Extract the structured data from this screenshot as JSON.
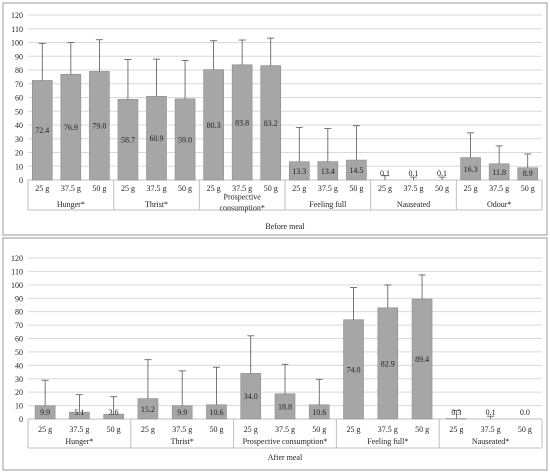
{
  "chart_data": [
    {
      "type": "bar",
      "caption": "Before meal",
      "ylim": [
        0,
        120
      ],
      "ytick_step": 10,
      "grid": true,
      "groups": [
        {
          "name": "Hunger*",
          "categories": [
            "25 g",
            "37.5 g",
            "50 g"
          ],
          "values": [
            72.4,
            76.9,
            79.0
          ],
          "errors": [
            27,
            23,
            23
          ]
        },
        {
          "name": "Thrist*",
          "categories": [
            "25 g",
            "37.5 g",
            "50 g"
          ],
          "values": [
            58.7,
            60.9,
            59.0
          ],
          "errors": [
            29,
            27,
            28
          ]
        },
        {
          "name": "Prospective consumption*",
          "categories": [
            "25 g",
            "37.5 g",
            "50 g"
          ],
          "values": [
            80.3,
            83.8,
            83.2
          ],
          "errors": [
            21,
            18,
            20
          ]
        },
        {
          "name": "Feeling full",
          "categories": [
            "25 g",
            "37.5 g",
            "50 g"
          ],
          "values": [
            13.3,
            13.4,
            14.5
          ],
          "errors": [
            25,
            24,
            25
          ]
        },
        {
          "name": "Nauseated",
          "categories": [
            "25 g",
            "37.5 g",
            "50 g"
          ],
          "values": [
            0.1,
            0.1,
            0.1
          ],
          "errors": [
            3,
            2,
            2
          ]
        },
        {
          "name": "Odour*",
          "categories": [
            "25 g",
            "37.5 g",
            "50 g"
          ],
          "values": [
            16.3,
            11.8,
            8.9
          ],
          "errors": [
            18,
            13,
            10
          ]
        }
      ]
    },
    {
      "type": "bar",
      "caption": "After meal",
      "ylim": [
        0,
        120
      ],
      "ytick_step": 10,
      "grid": true,
      "groups": [
        {
          "name": "Hunger*",
          "categories": [
            "25 g",
            "37.5 g",
            "50 g"
          ],
          "values": [
            9.9,
            5.1,
            3.6
          ],
          "errors": [
            19,
            13,
            13
          ]
        },
        {
          "name": "Thrist*",
          "categories": [
            "25 g",
            "37.5 g",
            "50 g"
          ],
          "values": [
            15.2,
            9.9,
            10.6
          ],
          "errors": [
            29,
            26,
            28
          ]
        },
        {
          "name": "Prospective consumption*",
          "categories": [
            "25 g",
            "37.5 g",
            "50 g"
          ],
          "values": [
            34.0,
            18.8,
            10.6
          ],
          "errors": [
            28,
            22,
            19
          ]
        },
        {
          "name": "Feeling full*",
          "categories": [
            "25 g",
            "37.5 g",
            "50 g"
          ],
          "values": [
            74.0,
            82.9,
            89.4
          ],
          "errors": [
            24,
            17,
            18
          ]
        },
        {
          "name": "Nauseated*",
          "categories": [
            "25 g",
            "37.5 g",
            "50 g"
          ],
          "values": [
            0.3,
            0.1,
            0.0
          ],
          "errors": [
            6,
            2,
            0
          ]
        }
      ]
    }
  ],
  "colors": {
    "bar": "#a6a6a6",
    "bar_edge": "#8c8c8c",
    "grid": "#d9d9d9",
    "axis": "#bfbfbf",
    "panel_border": "#9a9a9a",
    "error": "#555555"
  }
}
